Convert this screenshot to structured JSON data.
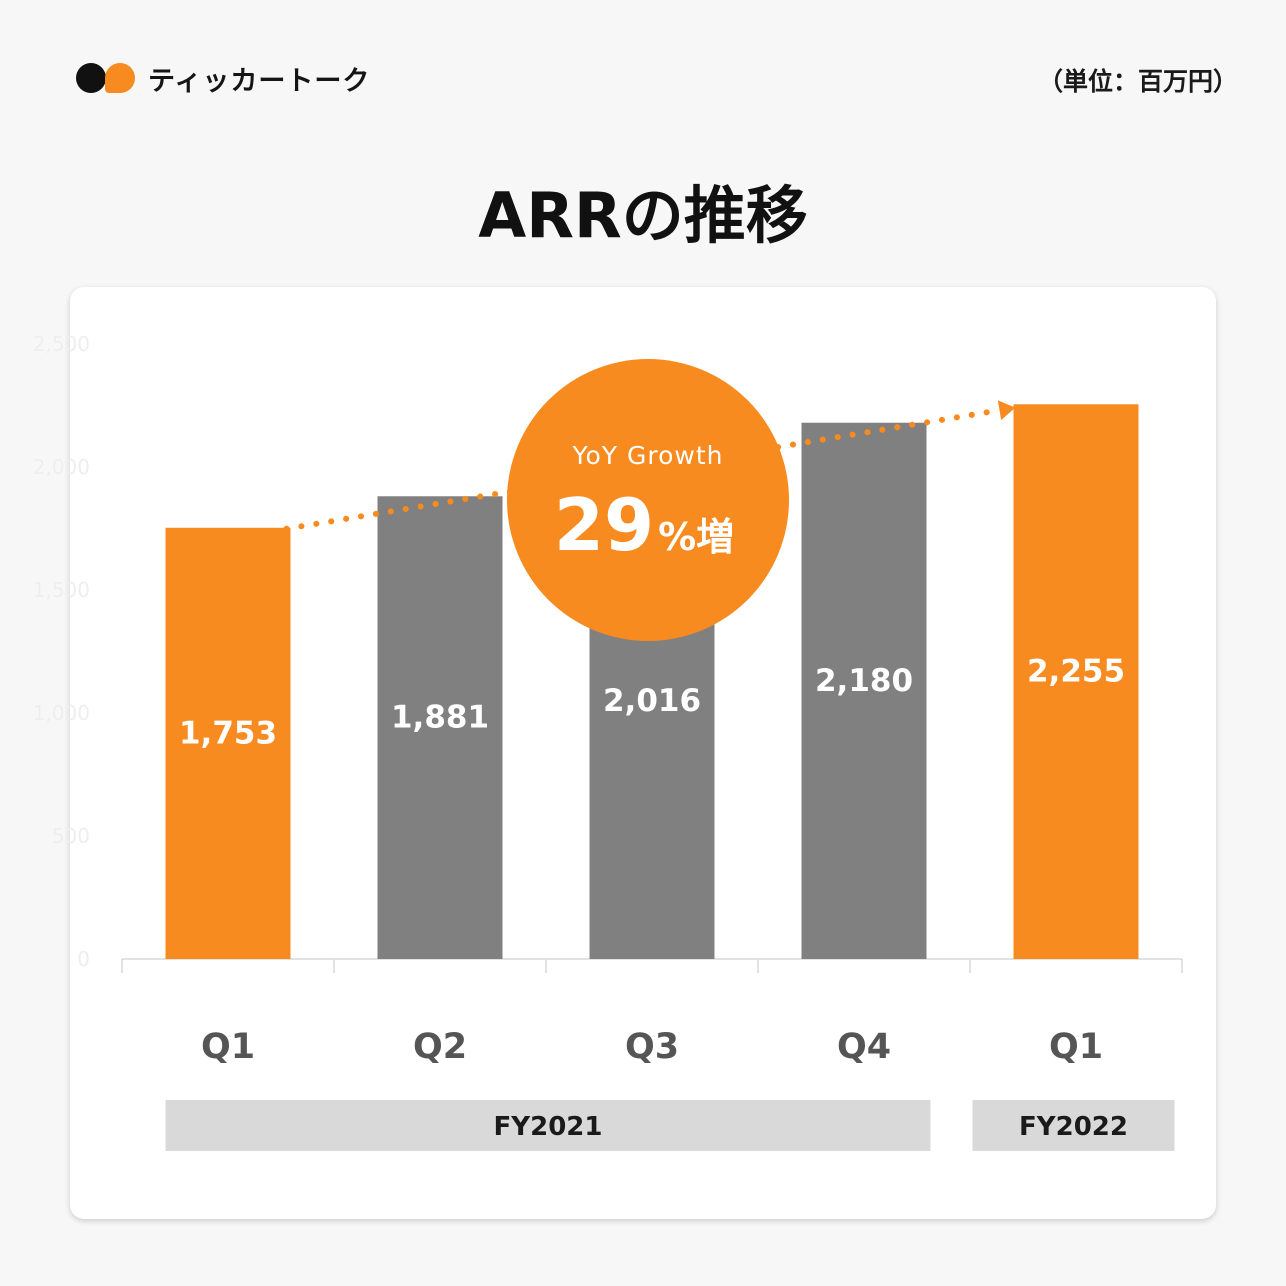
{
  "brand": {
    "name": "ティッカートーク",
    "colors": {
      "orange": "#f78b1f",
      "gray": "#808080",
      "dark": "#111111"
    }
  },
  "unit_label": "（単位：百万円）",
  "title": "ARRの推移",
  "badge": {
    "label": "YoY Growth",
    "value": "29",
    "suffix": "%増"
  },
  "chart_data": {
    "type": "bar",
    "title": "ARRの推移",
    "unit": "百万円",
    "categories": [
      "Q1",
      "Q2",
      "Q3",
      "Q4",
      "Q1"
    ],
    "values": [
      1753,
      1881,
      2016,
      2180,
      2255
    ],
    "value_labels": [
      "1,753",
      "1,881",
      "2,016",
      "2,180",
      "2,255"
    ],
    "bar_colors": [
      "#f78b1f",
      "#808080",
      "#808080",
      "#808080",
      "#f78b1f"
    ],
    "ylim": [
      0,
      2500
    ],
    "yticks": [
      0,
      500,
      1000,
      1500,
      2000,
      2500
    ],
    "ytick_labels": [
      "0",
      "500",
      "1,000",
      "1,500",
      "2,000",
      "2,500"
    ],
    "groups": [
      {
        "label": "FY2021",
        "from": 0,
        "to": 3
      },
      {
        "label": "FY2022",
        "from": 4,
        "to": 4
      }
    ],
    "trend_arrow": {
      "from_index": 0,
      "to_index": 4,
      "style": "dotted"
    },
    "grid": false,
    "legend": "none"
  }
}
